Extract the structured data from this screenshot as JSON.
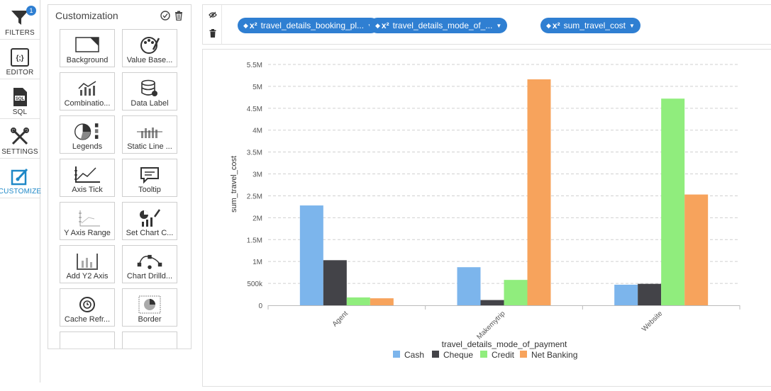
{
  "nav": {
    "items": [
      {
        "label": "FILTERS",
        "icon": "funnel-icon",
        "badge": "1"
      },
      {
        "label": "EDITOR",
        "icon": "braces-icon"
      },
      {
        "label": "SQL",
        "icon": "sql-file-icon"
      },
      {
        "label": "SETTINGS",
        "icon": "tools-icon"
      },
      {
        "label": "CUSTOMIZE",
        "icon": "customize-icon",
        "active": true
      }
    ]
  },
  "panel": {
    "title": "Customization",
    "tiles": [
      {
        "label": "Background",
        "icon": "background-icon"
      },
      {
        "label": "Value Base...",
        "icon": "palette-icon"
      },
      {
        "label": "Combinatio...",
        "icon": "combination-chart-icon"
      },
      {
        "label": "Data Label",
        "icon": "database-icon"
      },
      {
        "label": "Legends",
        "icon": "pie-legend-icon"
      },
      {
        "label": "Static Line ...",
        "icon": "static-line-icon"
      },
      {
        "label": "Axis Tick",
        "icon": "axis-tick-icon"
      },
      {
        "label": "Tooltip",
        "icon": "tooltip-icon"
      },
      {
        "label": "Y Axis Range",
        "icon": "y-axis-range-icon"
      },
      {
        "label": "Set Chart C...",
        "icon": "chart-color-icon"
      },
      {
        "label": "Add Y2 Axis",
        "icon": "y2-axis-icon"
      },
      {
        "label": "Chart Drilld...",
        "icon": "drilldown-icon"
      },
      {
        "label": "Cache Refr...",
        "icon": "cache-refresh-icon"
      },
      {
        "label": "Border",
        "icon": "border-icon"
      },
      {
        "label": "",
        "icon": "bar-chart-icon"
      },
      {
        "label": "",
        "icon": "bar-chart-frame-icon"
      }
    ]
  },
  "toolbar": {
    "pills": [
      {
        "label": "travel_details_booking_pl...",
        "sort": "◆",
        "fx": "x²"
      },
      {
        "label": "travel_details_mode_of_...",
        "sort": "◆",
        "fx": "x²"
      },
      {
        "label": "sum_travel_cost",
        "sort": "◆",
        "fx": "x²"
      }
    ]
  },
  "colors": {
    "accent": "#2f7fd2",
    "cash": "#7cb5ec",
    "cheque": "#434348",
    "credit": "#90ed7d",
    "net_banking": "#f7a35c"
  },
  "chart_data": {
    "type": "bar",
    "categories": [
      "Agent",
      "Makemytrip",
      "Website"
    ],
    "series": [
      {
        "name": "Cash",
        "values": [
          2280000,
          870000,
          470000
        ]
      },
      {
        "name": "Cheque",
        "values": [
          1030000,
          120000,
          490000
        ]
      },
      {
        "name": "Credit",
        "values": [
          180000,
          580000,
          4720000
        ]
      },
      {
        "name": "Net Banking",
        "values": [
          160000,
          5160000,
          2530000
        ]
      }
    ],
    "xlabel": "travel_details_mode_of_payment",
    "ylabel": "sum_travel_cost",
    "ylim": [
      0,
      5500000
    ],
    "yticks": [
      {
        "value": 0,
        "label": "0"
      },
      {
        "value": 500000,
        "label": "500k"
      },
      {
        "value": 1000000,
        "label": "1M"
      },
      {
        "value": 1500000,
        "label": "1.5M"
      },
      {
        "value": 2000000,
        "label": "2M"
      },
      {
        "value": 2500000,
        "label": "2.5M"
      },
      {
        "value": 3000000,
        "label": "3M"
      },
      {
        "value": 3500000,
        "label": "3.5M"
      },
      {
        "value": 4000000,
        "label": "4M"
      },
      {
        "value": 4500000,
        "label": "4.5M"
      },
      {
        "value": 5000000,
        "label": "5M"
      },
      {
        "value": 5500000,
        "label": "5.5M"
      }
    ],
    "grid": true,
    "legend_position": "bottom-center"
  }
}
